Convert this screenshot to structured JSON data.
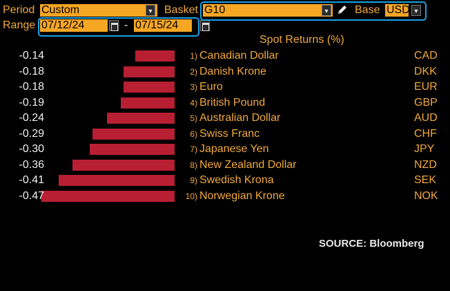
{
  "toolbar": {
    "period_label": "Period",
    "period_value": "Custom",
    "basket_label": "Basket",
    "basket_value": "G10",
    "base_label": "Base",
    "base_value": "USD",
    "range_label": "Range",
    "range_start": "07/12/24",
    "range_sep": "-",
    "range_end": "07/15/24"
  },
  "chart": {
    "header": "Spot Returns (%)",
    "source": "SOURCE: Bloomberg",
    "bar_color": "#b81f33",
    "rows": [
      {
        "value": "-0.14",
        "rank": "1)",
        "name": "Canadian Dollar",
        "code": "CAD"
      },
      {
        "value": "-0.18",
        "rank": "2)",
        "name": "Danish Krone",
        "code": "DKK"
      },
      {
        "value": "-0.18",
        "rank": "3)",
        "name": "Euro",
        "code": "EUR"
      },
      {
        "value": "-0.19",
        "rank": "4)",
        "name": "British Pound",
        "code": "GBP"
      },
      {
        "value": "-0.24",
        "rank": "5)",
        "name": "Australian Dollar",
        "code": "AUD"
      },
      {
        "value": "-0.29",
        "rank": "6)",
        "name": "Swiss Franc",
        "code": "CHF"
      },
      {
        "value": "-0.30",
        "rank": "7)",
        "name": "Japanese Yen",
        "code": "JPY"
      },
      {
        "value": "-0.36",
        "rank": "8)",
        "name": "New Zealand Dollar",
        "code": "NZD"
      },
      {
        "value": "-0.41",
        "rank": "9)",
        "name": "Swedish Krona",
        "code": "SEK"
      },
      {
        "value": "-0.47",
        "rank": "10)",
        "name": "Norwegian Krone",
        "code": "NOK"
      }
    ]
  },
  "chart_data": {
    "type": "bar",
    "categories": [
      "CAD",
      "DKK",
      "EUR",
      "GBP",
      "AUD",
      "CHF",
      "JPY",
      "NZD",
      "SEK",
      "NOK"
    ],
    "values": [
      -0.14,
      -0.18,
      -0.18,
      -0.19,
      -0.24,
      -0.29,
      -0.3,
      -0.36,
      -0.41,
      -0.47
    ],
    "title": "Spot Returns (%)",
    "xlabel": "",
    "ylabel": ""
  }
}
